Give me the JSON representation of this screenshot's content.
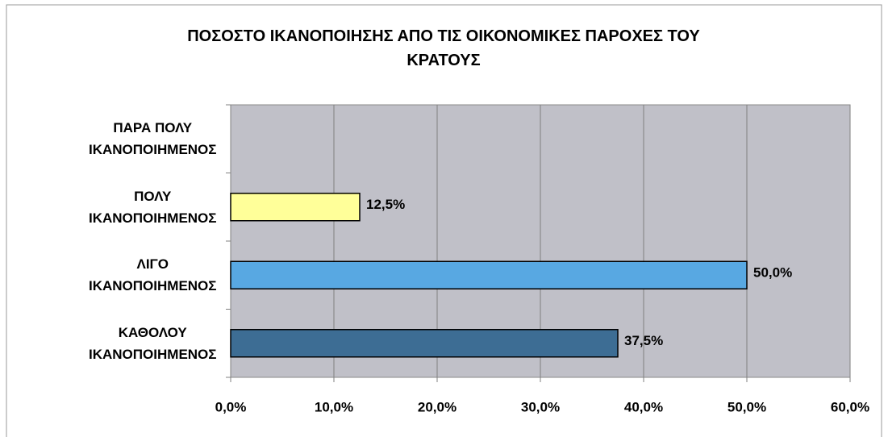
{
  "chart_data": {
    "type": "hbar",
    "title": "ΠΟΣΟΣΤΟ ΙΚΑΝΟΠΟΙΗΣΗΣ ΑΠΟ ΤΙΣ ΟΙΚΟΝΟΜΙΚΕΣ ΠΑΡΟΧΕΣ ΤΟΥ\nΚΡΑΤΟΥΣ",
    "categories": [
      "ΠΑΡΑ ΠΟΛΥ\nΙΚΑΝΟΠΟΙΗΜΕΝΟΣ",
      "ΠΟΛΥ\nΙΚΑΝΟΠΟΙΗΜΕΝΟΣ",
      "ΛΙΓΟ\nΙΚΑΝΟΠΟΙΗΜΕΝΟΣ",
      "ΚΑΘΟΛΟΥ\nΙΚΑΝΟΠΟΙΗΜΕΝΟΣ"
    ],
    "values": [
      0,
      12.5,
      50,
      37.5
    ],
    "value_labels": [
      null,
      "12,5%",
      "50,0%",
      "37,5%"
    ],
    "colors": [
      "#ffff99",
      "#ffff99",
      "#58a8e2",
      "#3d6d94"
    ],
    "xlim": [
      0,
      60
    ],
    "xticks": [
      {
        "value": 0,
        "label": "0,0%"
      },
      {
        "value": 10,
        "label": "10,0%"
      },
      {
        "value": 20,
        "label": "20,0%"
      },
      {
        "value": 30,
        "label": "30,0%"
      },
      {
        "value": 40,
        "label": "40,0%"
      },
      {
        "value": 50,
        "label": "50,0%"
      },
      {
        "value": 60,
        "label": "60,0%"
      }
    ],
    "grid": true
  }
}
